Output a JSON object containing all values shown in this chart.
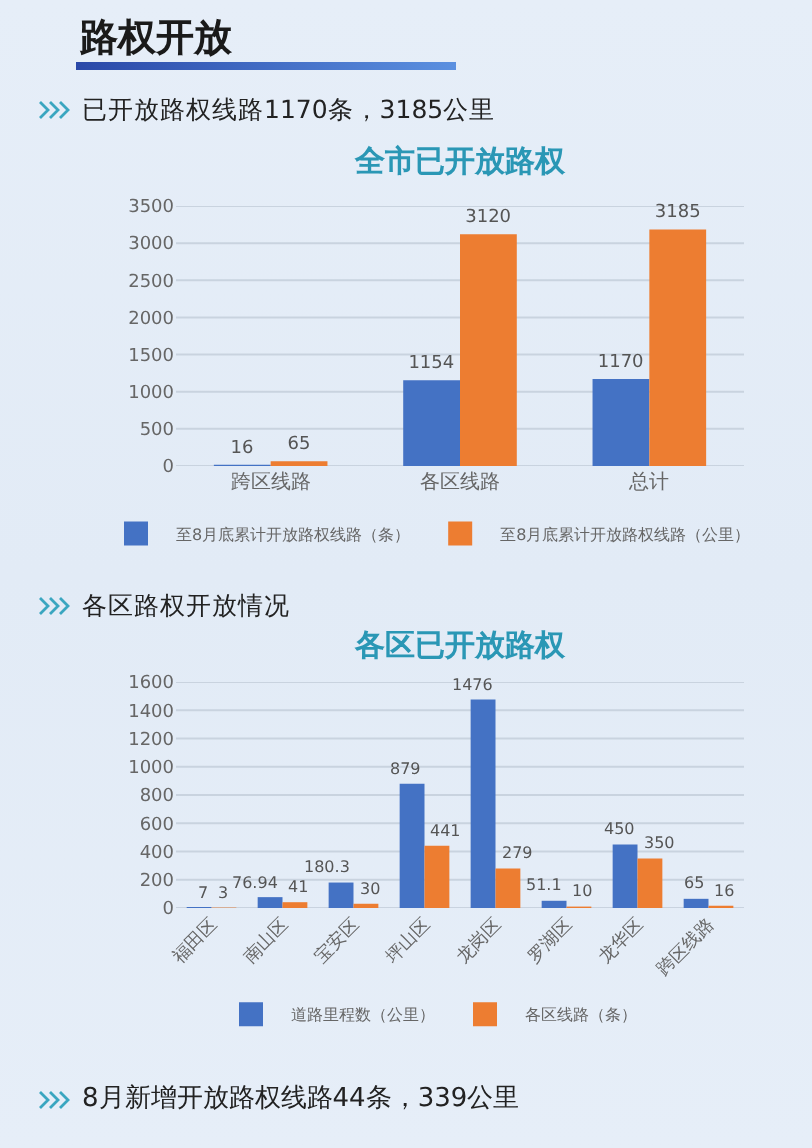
{
  "chart_data": [
    {
      "type": "bar",
      "title": "全市已开放路权",
      "subtitle": "已开放路权线路1170条，3185公里",
      "annotations": [
        "路权开放"
      ],
      "categories": [
        "跨区线路",
        "各区线路",
        "总计"
      ],
      "series": [
        {
          "name": "至8月底累计开放路权线路（条）",
          "color": "#4472c4",
          "values": [
            16,
            1154,
            1170
          ]
        },
        {
          "name": "至8月底累计开放路权线路（公里）",
          "color": "#ed7d31",
          "values": [
            65,
            3120,
            3185
          ]
        }
      ],
      "ylim": [
        0,
        3500
      ],
      "yticks": [
        0,
        500,
        1000,
        1500,
        2000,
        2500,
        3000,
        3500
      ],
      "grid": "y",
      "legend": "bottom",
      "data_labels": true
    },
    {
      "type": "bar",
      "title": "各区已开放路权",
      "subtitle": "各区路权开放情况",
      "annotations": [
        "8月新增开放路权线路44条，339公里"
      ],
      "categories": [
        "福田区",
        "南山区",
        "宝安区",
        "坪山区",
        "龙岗区",
        "罗湖区",
        "龙华区",
        "跨区线路"
      ],
      "series": [
        {
          "name": "道路里程数（公里）",
          "color": "#4472c4",
          "values": [
            7,
            76.94,
            180.3,
            879,
            1476,
            51.1,
            450,
            65
          ]
        },
        {
          "name": "各区线路（条）",
          "color": "#ed7d31",
          "values": [
            3,
            41,
            30,
            441,
            279,
            10,
            350,
            16
          ]
        }
      ],
      "ylim": [
        0,
        1600
      ],
      "yticks": [
        0,
        200,
        400,
        600,
        800,
        1000,
        1200,
        1400,
        1600
      ],
      "grid": "y",
      "legend": "bottom",
      "data_labels": true
    }
  ]
}
